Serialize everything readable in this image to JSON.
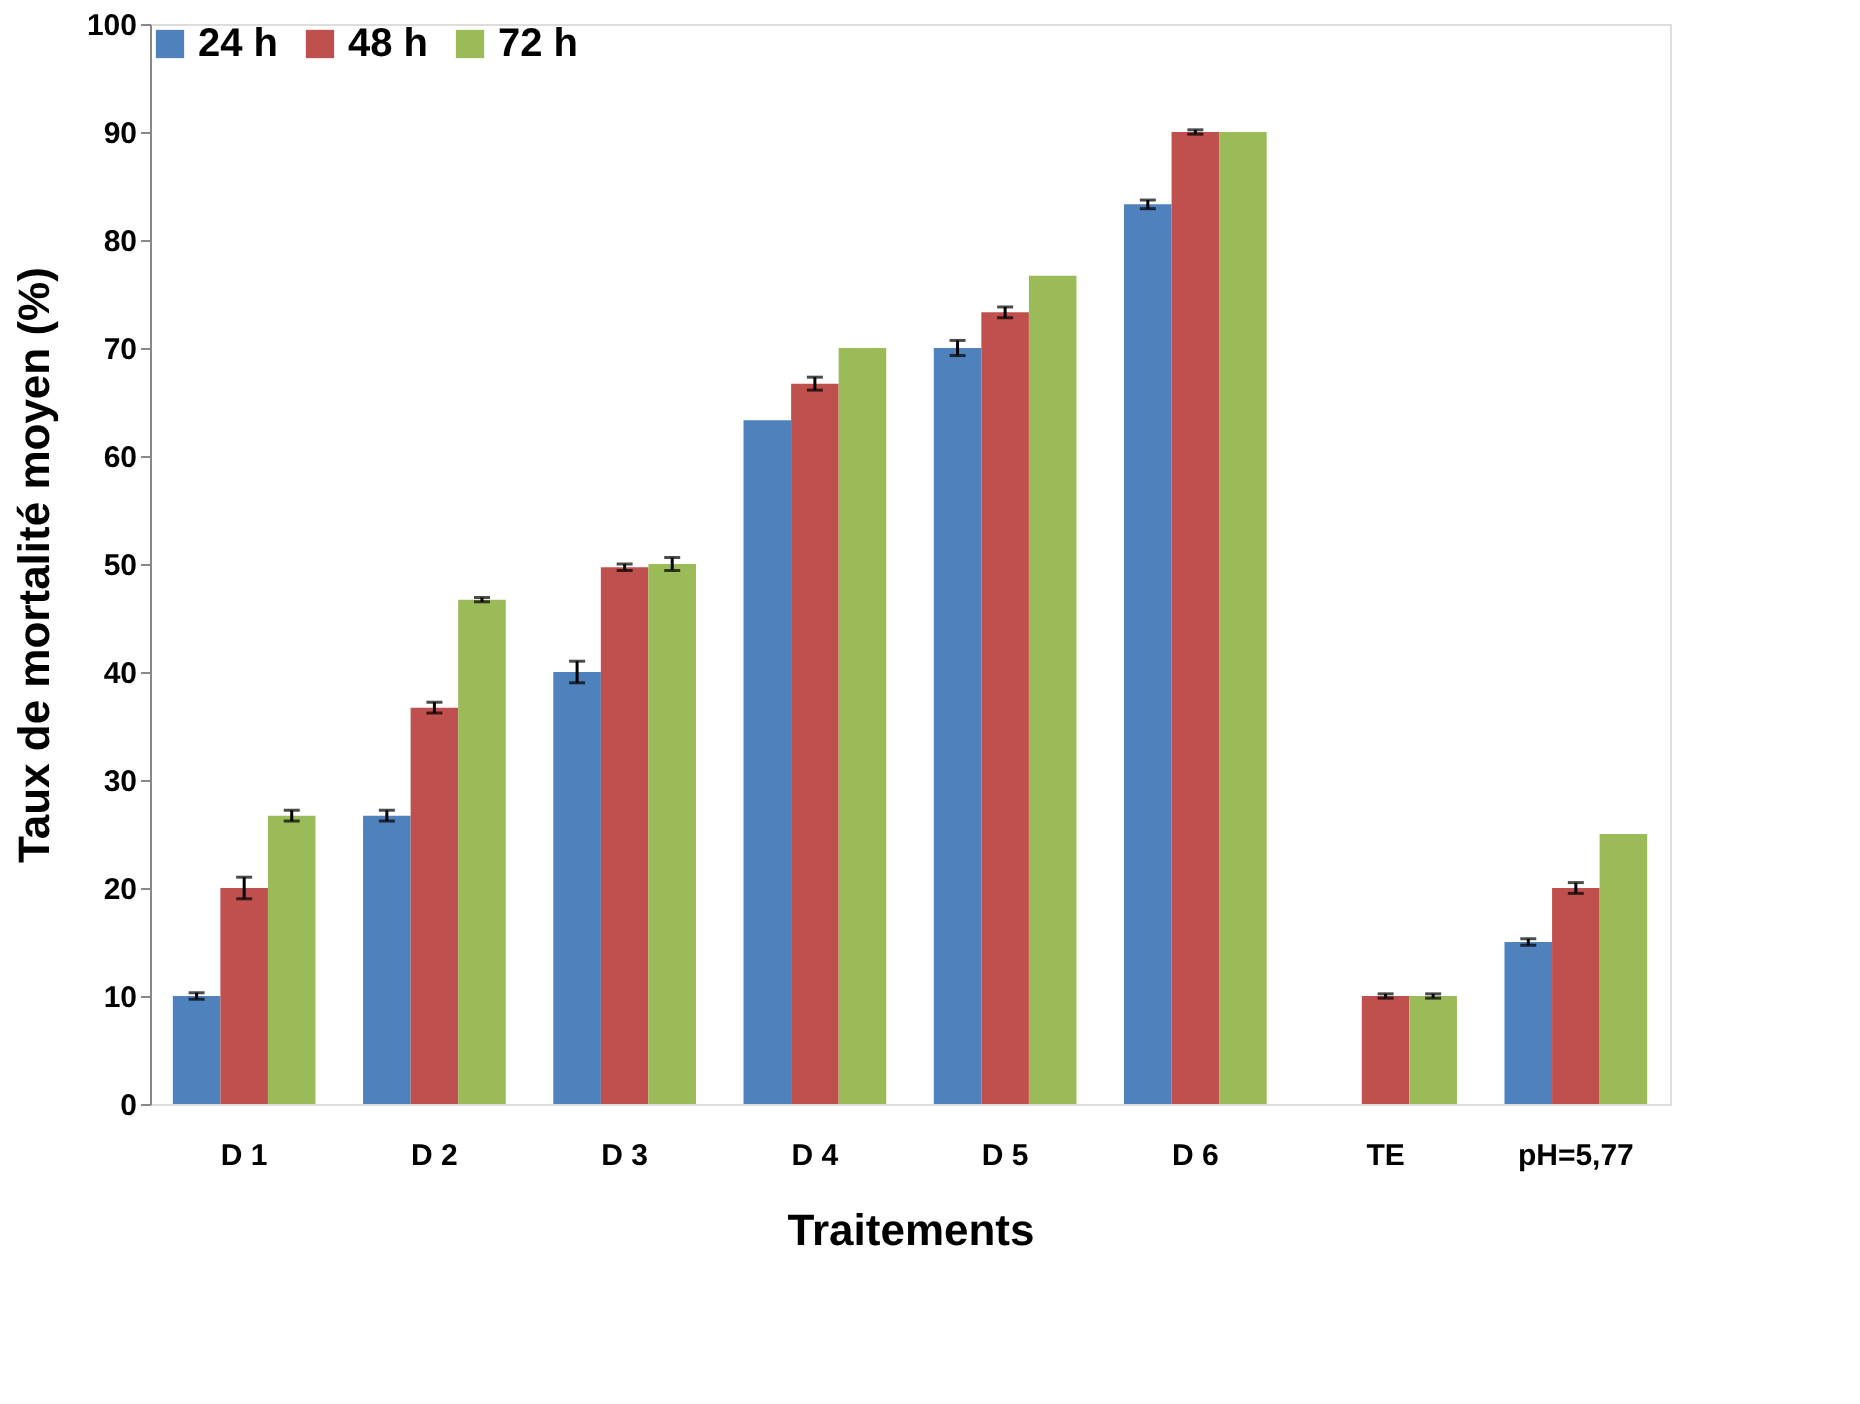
{
  "chart_data": {
    "type": "bar",
    "xlabel": "Traitements",
    "ylabel": "Taux de mortalité moyen (%)",
    "categories": [
      "D 1",
      "D 2",
      "D 3",
      "D 4",
      "D 5",
      "D 6",
      "TE",
      "pH=5,77"
    ],
    "series": [
      {
        "name": "24 h",
        "color": "#4f81bd",
        "values": [
          10,
          26.7,
          40,
          63.3,
          70,
          83.3,
          null,
          15
        ],
        "errors": [
          0.3,
          0.5,
          1,
          null,
          0.7,
          0.4,
          null,
          0.3
        ]
      },
      {
        "name": "48 h",
        "color": "#c0504d",
        "values": [
          20,
          36.7,
          49.7,
          66.7,
          73.3,
          90,
          10,
          20
        ],
        "errors": [
          1,
          0.5,
          0.3,
          0.6,
          0.5,
          0.2,
          0.2,
          0.5
        ]
      },
      {
        "name": "72 h",
        "color": "#9bbb59",
        "values": [
          26.7,
          46.7,
          50,
          70,
          76.7,
          90,
          10,
          25
        ],
        "errors": [
          0.5,
          0.2,
          0.6,
          null,
          null,
          null,
          0.2,
          null
        ]
      }
    ],
    "ylim": [
      0,
      100
    ],
    "yticks": [
      0,
      10,
      20,
      30,
      40,
      50,
      60,
      70,
      80,
      90,
      100
    ],
    "grid": false,
    "legend": "top"
  }
}
